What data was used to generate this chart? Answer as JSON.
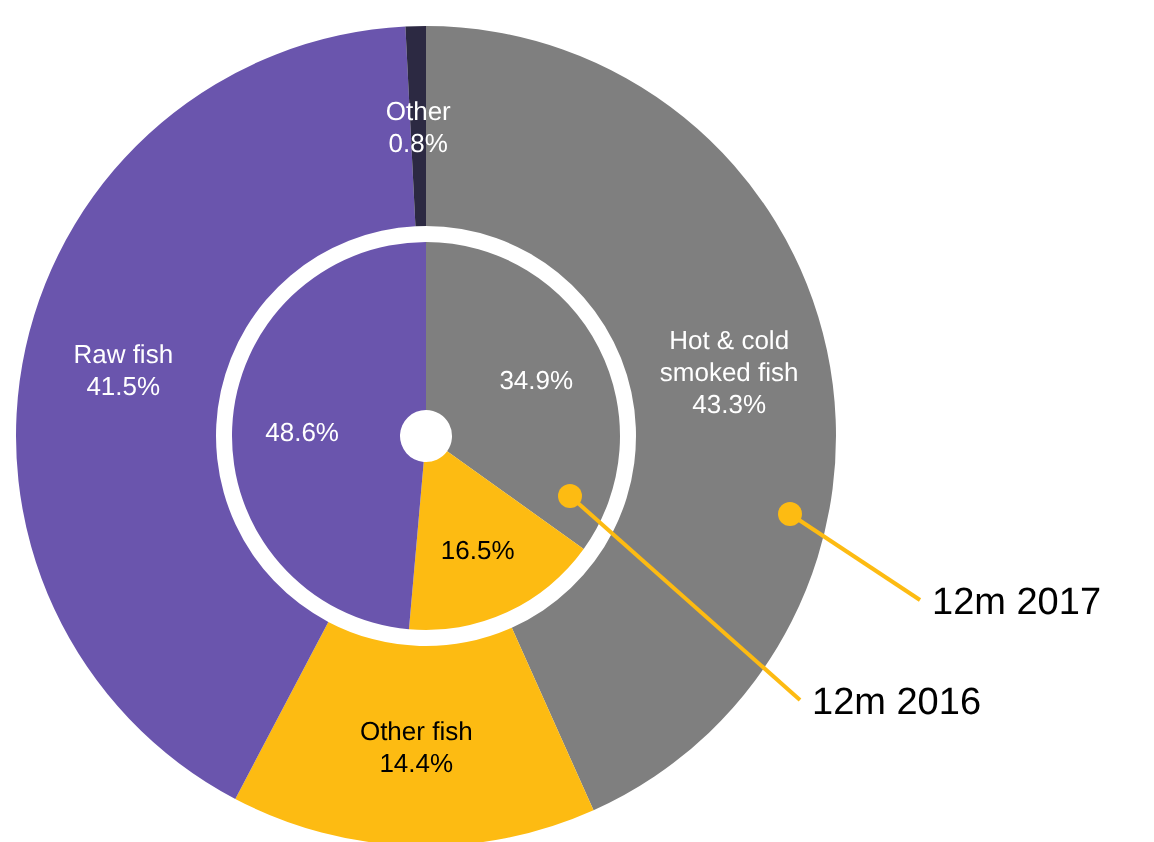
{
  "chart_data": {
    "type": "donut",
    "categories": [
      "Hot & cold smoked fish",
      "Other fish",
      "Raw fish",
      "Other"
    ],
    "colors": [
      "#7f7f7f",
      "#fdbb12",
      "#6a55ad",
      "#2c2942"
    ],
    "series": [
      {
        "name": "12m 2017",
        "values": [
          43.3,
          14.4,
          41.5,
          0.8
        ],
        "value_labels": [
          "43.3%",
          "14.4%",
          "41.5%",
          "0.8%"
        ]
      },
      {
        "name": "12m 2016",
        "values": [
          34.9,
          16.5,
          48.6,
          null
        ],
        "value_labels": [
          "34.9%",
          "16.5%",
          "48.6%",
          null
        ]
      }
    ]
  }
}
